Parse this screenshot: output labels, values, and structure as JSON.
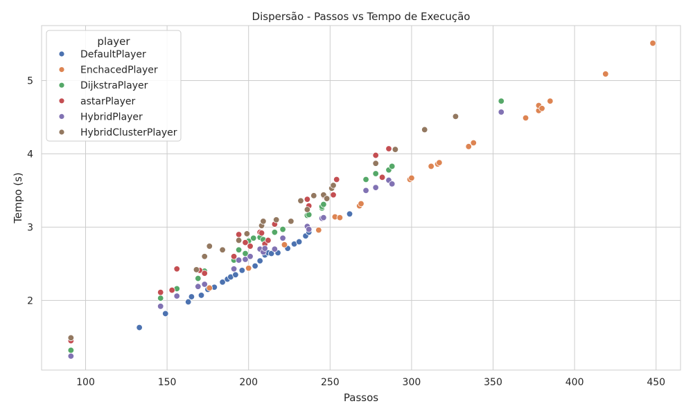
{
  "chart_data": {
    "type": "scatter",
    "title": "Dispersão - Passos vs Tempo de Execução",
    "xlabel": "Passos",
    "ylabel": "Tempo (s)",
    "xlim": [
      73,
      465
    ],
    "ylim": [
      1.05,
      5.75
    ],
    "xticks": [
      "100",
      "150",
      "200",
      "250",
      "300",
      "350",
      "400",
      "450"
    ],
    "yticks": [
      "2",
      "3",
      "4",
      "5"
    ],
    "grid": true,
    "legend": {
      "title": "player",
      "placement": "top-left"
    },
    "series": [
      {
        "name": "DefaultPlayer",
        "color": "#4c72b0",
        "points": [
          [
            91,
            1.24
          ],
          [
            133,
            1.63
          ],
          [
            149,
            1.82
          ],
          [
            163,
            1.98
          ],
          [
            165,
            2.05
          ],
          [
            171,
            2.07
          ],
          [
            175,
            2.15
          ],
          [
            179,
            2.18
          ],
          [
            184,
            2.25
          ],
          [
            187,
            2.29
          ],
          [
            189,
            2.32
          ],
          [
            192,
            2.35
          ],
          [
            196,
            2.41
          ],
          [
            200,
            2.44
          ],
          [
            204,
            2.47
          ],
          [
            207,
            2.54
          ],
          [
            210,
            2.62
          ],
          [
            212,
            2.65
          ],
          [
            214,
            2.64
          ],
          [
            218,
            2.65
          ],
          [
            224,
            2.71
          ],
          [
            228,
            2.77
          ],
          [
            231,
            2.8
          ],
          [
            235,
            2.88
          ],
          [
            237,
            2.93
          ],
          [
            262,
            3.18
          ]
        ]
      },
      {
        "name": "EnchacedPlayer",
        "color": "#dd8452",
        "points": [
          [
            176,
            2.17
          ],
          [
            200,
            2.44
          ],
          [
            222,
            2.76
          ],
          [
            243,
            2.96
          ],
          [
            253,
            3.14
          ],
          [
            256,
            3.13
          ],
          [
            268,
            3.29
          ],
          [
            269,
            3.32
          ],
          [
            299,
            3.65
          ],
          [
            300,
            3.67
          ],
          [
            312,
            3.83
          ],
          [
            316,
            3.86
          ],
          [
            317,
            3.88
          ],
          [
            335,
            4.1
          ],
          [
            338,
            4.15
          ],
          [
            370,
            4.49
          ],
          [
            378,
            4.59
          ],
          [
            378,
            4.66
          ],
          [
            380,
            4.62
          ],
          [
            385,
            4.72
          ],
          [
            419,
            5.09
          ],
          [
            448,
            5.51
          ]
        ]
      },
      {
        "name": "DijkstraPlayer",
        "color": "#55a868",
        "points": [
          [
            91,
            1.32
          ],
          [
            146,
            2.03
          ],
          [
            156,
            2.16
          ],
          [
            169,
            2.3
          ],
          [
            173,
            2.4
          ],
          [
            191,
            2.55
          ],
          [
            194,
            2.69
          ],
          [
            198,
            2.64
          ],
          [
            200,
            2.81
          ],
          [
            203,
            2.85
          ],
          [
            207,
            2.86
          ],
          [
            209,
            2.83
          ],
          [
            216,
            2.93
          ],
          [
            221,
            2.97
          ],
          [
            236,
            3.16
          ],
          [
            237,
            3.17
          ],
          [
            245,
            3.26
          ],
          [
            245,
            3.28
          ],
          [
            246,
            3.31
          ],
          [
            272,
            3.65
          ],
          [
            278,
            3.73
          ],
          [
            286,
            3.78
          ],
          [
            288,
            3.83
          ],
          [
            355,
            4.72
          ]
        ]
      },
      {
        "name": "astarPlayer",
        "color": "#c44e52",
        "points": [
          [
            91,
            1.45
          ],
          [
            146,
            2.11
          ],
          [
            153,
            2.14
          ],
          [
            156,
            2.43
          ],
          [
            170,
            2.41
          ],
          [
            173,
            2.37
          ],
          [
            191,
            2.6
          ],
          [
            194,
            2.9
          ],
          [
            198,
            2.79
          ],
          [
            201,
            2.74
          ],
          [
            207,
            2.93
          ],
          [
            208,
            2.92
          ],
          [
            210,
            2.77
          ],
          [
            212,
            2.82
          ],
          [
            216,
            3.04
          ],
          [
            236,
            3.38
          ],
          [
            237,
            3.29
          ],
          [
            246,
            3.43
          ],
          [
            252,
            3.44
          ],
          [
            254,
            3.65
          ],
          [
            278,
            3.98
          ],
          [
            282,
            3.68
          ],
          [
            286,
            4.07
          ]
        ]
      },
      {
        "name": "HybridPlayer",
        "color": "#8172b3",
        "points": [
          [
            91,
            1.24
          ],
          [
            146,
            1.92
          ],
          [
            156,
            2.06
          ],
          [
            169,
            2.19
          ],
          [
            173,
            2.22
          ],
          [
            191,
            2.43
          ],
          [
            194,
            2.55
          ],
          [
            198,
            2.56
          ],
          [
            201,
            2.6
          ],
          [
            207,
            2.7
          ],
          [
            209,
            2.66
          ],
          [
            210,
            2.71
          ],
          [
            216,
            2.7
          ],
          [
            221,
            2.85
          ],
          [
            236,
            3.01
          ],
          [
            237,
            2.97
          ],
          [
            245,
            3.12
          ],
          [
            246,
            3.13
          ],
          [
            272,
            3.5
          ],
          [
            278,
            3.54
          ],
          [
            286,
            3.64
          ],
          [
            288,
            3.59
          ],
          [
            355,
            4.57
          ]
        ]
      },
      {
        "name": "HybridClusterPlayer",
        "color": "#937860",
        "points": [
          [
            91,
            1.49
          ],
          [
            168,
            2.42
          ],
          [
            173,
            2.6
          ],
          [
            176,
            2.74
          ],
          [
            184,
            2.69
          ],
          [
            194,
            2.82
          ],
          [
            199,
            2.91
          ],
          [
            208,
            3.02
          ],
          [
            209,
            3.08
          ],
          [
            217,
            3.1
          ],
          [
            226,
            3.08
          ],
          [
            232,
            3.36
          ],
          [
            236,
            3.24
          ],
          [
            240,
            3.43
          ],
          [
            246,
            3.44
          ],
          [
            248,
            3.39
          ],
          [
            251,
            3.53
          ],
          [
            252,
            3.57
          ],
          [
            278,
            3.87
          ],
          [
            290,
            4.06
          ],
          [
            308,
            4.33
          ],
          [
            327,
            4.51
          ]
        ]
      }
    ]
  }
}
